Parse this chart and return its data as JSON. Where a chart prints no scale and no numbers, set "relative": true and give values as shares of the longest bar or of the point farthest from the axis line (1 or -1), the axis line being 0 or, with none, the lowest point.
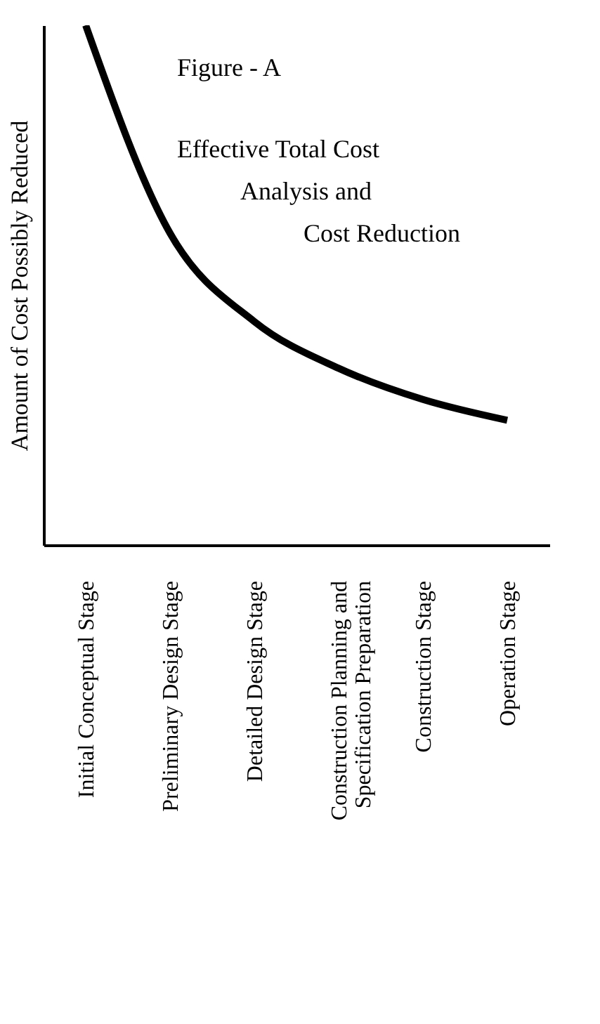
{
  "chart_data": {
    "type": "line",
    "relative": true,
    "ylabel": "Amount of Cost Possibly Reduced",
    "categories": [
      "Initial Conceptual Stage",
      "Preliminary Design Stage",
      "Detailed Design Stage",
      "Construction Planning and\nSpecification Preparation",
      "Construction Stage",
      "Operation Stage"
    ],
    "series": [
      {
        "color": "#000000",
        "values": [
          1,
          0.6,
          0.43,
          0.34,
          0.28,
          0.24
        ]
      }
    ],
    "annotations": [
      "Figure - A",
      "Effective Total Cost\nAnalysis and\nCost Reduction"
    ]
  }
}
